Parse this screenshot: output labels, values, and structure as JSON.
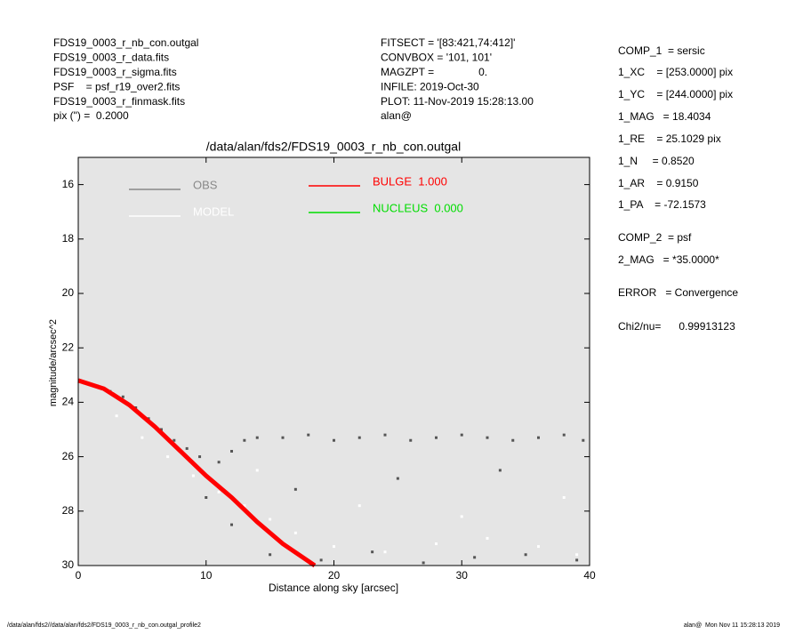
{
  "header": {
    "left": [
      "FDS19_0003_r_nb_con.outgal",
      "FDS19_0003_r_data.fits",
      "FDS19_0003_r_sigma.fits",
      "PSF    = psf_r19_over2.fits",
      "FDS19_0003_r_finmask.fits",
      "pix (\") =  0.2000"
    ],
    "middle": [
      "FITSECT = '[83:421,74:412]'",
      "CONVBOX = '101, 101'",
      "MAGZPT =               0.",
      "INFILE: 2019-Oct-30",
      "PLOT: 11-Nov-2019 15:28:13.00",
      "alan@"
    ]
  },
  "params": [
    "COMP_1  = sersic",
    "1_XC    = [253.0000] pix",
    "1_YC    = [244.0000] pix",
    "1_MAG   = 18.4034",
    "1_RE    = 25.1029 pix",
    "1_N     = 0.8520",
    "1_AR    = 0.9150",
    "1_PA    = -72.1573",
    "COMP_2  = psf",
    "2_MAG   = *35.0000*",
    "ERROR   = Convergence",
    "Chi2/nu=      0.99913123"
  ],
  "footer": {
    "left": "/data/alan/fds2//data/alan/fds2/FDS19_0003_r_nb_con.outgal_profile2",
    "right": "alan@  Mon Nov 11 15:28:13 2019"
  },
  "chart_data": {
    "type": "scatter",
    "title": "/data/alan/fds2/FDS19_0003_r_nb_con.outgal",
    "x_label": "Distance along sky [arcsec]",
    "y_label": "magnitude/arcsec^2",
    "xlim": [
      0,
      40
    ],
    "ylim": [
      30,
      15
    ],
    "xticks": [
      0,
      10,
      20,
      30,
      40
    ],
    "yticks": [
      16,
      18,
      20,
      22,
      24,
      26,
      28,
      30
    ],
    "series": [
      {
        "name": "OBS",
        "color": "#888888",
        "point_color": "#555555",
        "x": [
          0.5,
          1.5,
          2.5,
          3.5,
          4.5,
          5.5,
          6.5,
          7.5,
          8.5,
          9.5,
          11,
          12,
          13,
          14,
          16,
          18,
          20,
          22,
          24,
          26,
          28,
          30,
          32,
          34,
          36,
          38,
          39.5,
          12,
          15,
          19,
          23,
          27,
          31,
          35,
          39,
          10,
          17,
          25,
          33
        ],
        "values": [
          23.3,
          23.4,
          23.6,
          23.8,
          24.2,
          24.6,
          25.0,
          25.4,
          25.7,
          26.0,
          26.2,
          25.8,
          25.4,
          25.3,
          25.3,
          25.2,
          25.4,
          25.3,
          25.2,
          25.4,
          25.3,
          25.2,
          25.3,
          25.4,
          25.3,
          25.2,
          25.4,
          28.5,
          29.6,
          29.8,
          29.5,
          29.9,
          29.7,
          29.6,
          29.8,
          27.5,
          27.2,
          26.8,
          26.5
        ]
      },
      {
        "name": "MODEL",
        "color": "#ffffff",
        "point_color": "#ffffff",
        "x": [
          3,
          5,
          7,
          9,
          11,
          13,
          15,
          17,
          20,
          24,
          28,
          32,
          36,
          39,
          14,
          22,
          30,
          38
        ],
        "values": [
          24.5,
          25.3,
          26.0,
          26.7,
          27.3,
          27.8,
          28.3,
          28.8,
          29.3,
          29.5,
          29.2,
          29.0,
          29.3,
          29.6,
          26.5,
          27.8,
          28.2,
          27.5
        ]
      },
      {
        "name": "BULGE  1.000",
        "color": "#ff0000",
        "line": true,
        "x": [
          0,
          2,
          4,
          6,
          8,
          10,
          12,
          14,
          16,
          18.5
        ],
        "values": [
          23.2,
          23.5,
          24.1,
          24.9,
          25.8,
          26.7,
          27.5,
          28.4,
          29.2,
          30.0
        ]
      },
      {
        "name": "NUCLEUS  0.000",
        "color": "#00dd00",
        "line": true,
        "x": [],
        "values": []
      }
    ]
  }
}
